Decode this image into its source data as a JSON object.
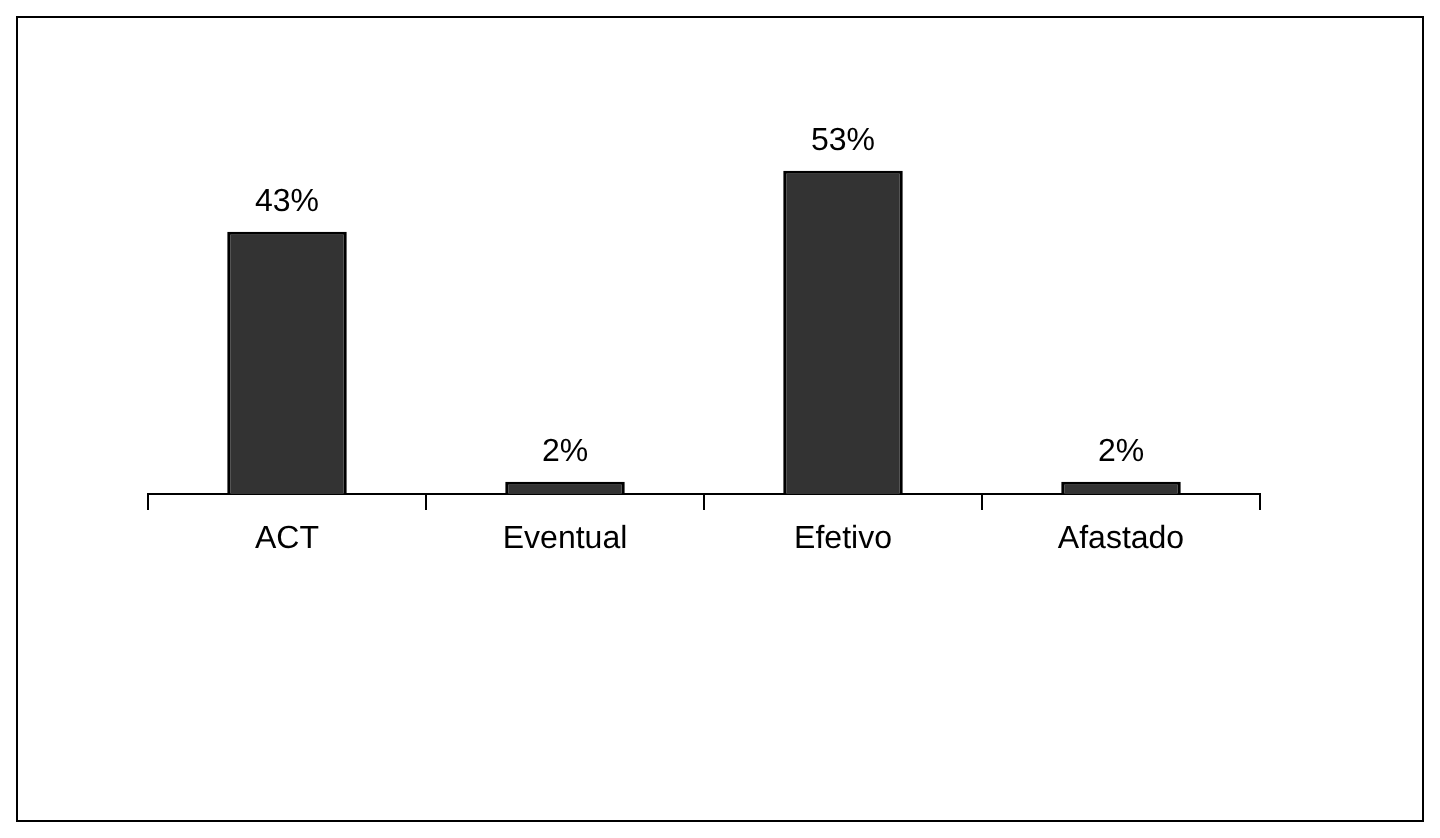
{
  "chart_data": {
    "type": "bar",
    "categories": [
      "ACT",
      "Eventual",
      "Efetivo",
      "Afastado"
    ],
    "values": [
      43,
      2,
      53,
      2
    ],
    "value_labels": [
      "43%",
      "2%",
      "53%",
      "2%"
    ],
    "color": "#333333"
  }
}
